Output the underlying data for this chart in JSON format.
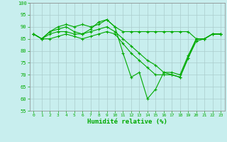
{
  "xlabel": "Humidité relative (%)",
  "background_color": "#c8eeee",
  "grid_color": "#aacccc",
  "line_color": "#00aa00",
  "marker": "+",
  "ylim": [
    55,
    100
  ],
  "xlim": [
    -0.5,
    23.5
  ],
  "yticks": [
    55,
    60,
    65,
    70,
    75,
    80,
    85,
    90,
    95,
    100
  ],
  "xticks": [
    0,
    1,
    2,
    3,
    4,
    5,
    6,
    7,
    8,
    9,
    10,
    11,
    12,
    13,
    14,
    15,
    16,
    17,
    18,
    19,
    20,
    21,
    22,
    23
  ],
  "series": [
    [
      87,
      85,
      88,
      90,
      91,
      90,
      91,
      90,
      91,
      93,
      90,
      88,
      88,
      88,
      88,
      88,
      88,
      88,
      88,
      88,
      85,
      85,
      87,
      87
    ],
    [
      87,
      85,
      88,
      89,
      90,
      88,
      87,
      89,
      92,
      93,
      90,
      79,
      69,
      71,
      60,
      64,
      71,
      70,
      69,
      77,
      85,
      85,
      87,
      87
    ],
    [
      87,
      85,
      87,
      88,
      88,
      87,
      87,
      88,
      89,
      90,
      88,
      85,
      82,
      79,
      76,
      74,
      71,
      71,
      70,
      78,
      85,
      85,
      87,
      87
    ],
    [
      87,
      85,
      85,
      86,
      87,
      86,
      85,
      86,
      87,
      88,
      87,
      83,
      79,
      76,
      73,
      70,
      70,
      70,
      69,
      77,
      84,
      85,
      87,
      87
    ]
  ]
}
